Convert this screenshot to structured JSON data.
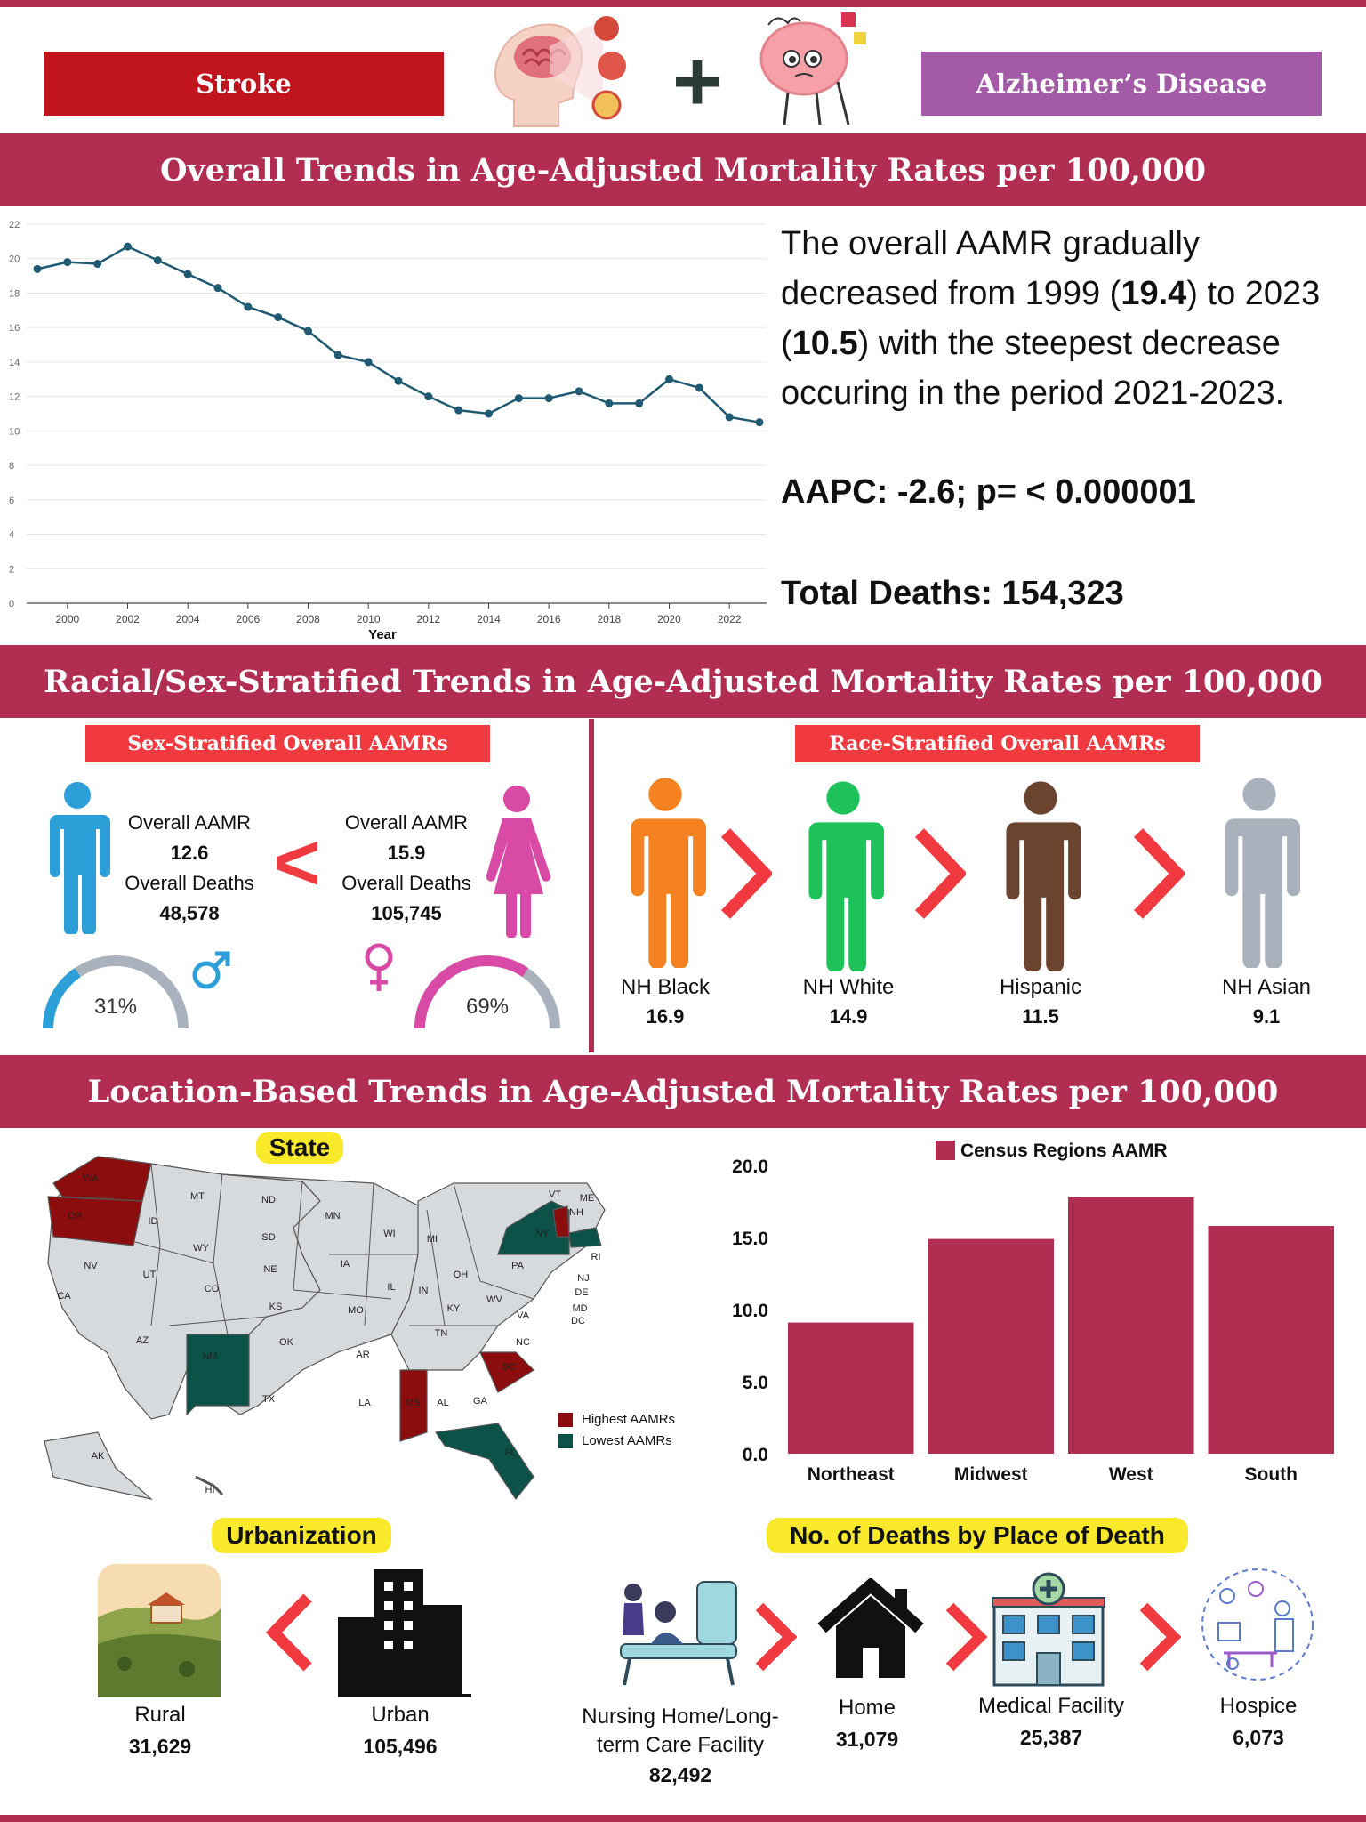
{
  "header": {
    "stroke_label": "Stroke",
    "plus": "+",
    "alz_label": "Alzheimer’s Disease"
  },
  "section1": {
    "title": "Overall Trends in Age-Adjusted Mortality Rates per 100,000",
    "summary_pre": "The overall AAMR gradually decreased from 1999 (",
    "summary_v1": "19.4",
    "summary_mid": ") to 2023 (",
    "summary_v2": "10.5",
    "summary_post": ") with the steepest decrease occuring in the period 2021-2023.",
    "aapc": "AAPC: -2.6; p= < 0.000001",
    "total_deaths": "Total Deaths: 154,323"
  },
  "chart_data": [
    {
      "type": "line",
      "title": "",
      "xlabel": "Year",
      "ylabel": "",
      "ylim": [
        0,
        22
      ],
      "yticks": [
        "0",
        "2",
        "4",
        "6",
        "8",
        "10",
        "12",
        "14",
        "16",
        "18",
        "20",
        "22"
      ],
      "xticks": [
        "2000",
        "2002",
        "2004",
        "2006",
        "2008",
        "2010",
        "2012",
        "2014",
        "2016",
        "2018",
        "2020",
        "2022"
      ],
      "x": [
        1999,
        2000,
        2001,
        2002,
        2003,
        2004,
        2005,
        2006,
        2007,
        2008,
        2009,
        2010,
        2011,
        2012,
        2013,
        2014,
        2015,
        2016,
        2017,
        2018,
        2019,
        2020,
        2021,
        2022,
        2023
      ],
      "values": [
        19.4,
        19.8,
        19.7,
        20.7,
        19.9,
        19.1,
        18.3,
        17.2,
        16.6,
        15.8,
        14.4,
        14.0,
        12.9,
        12.0,
        11.2,
        11.0,
        11.9,
        11.9,
        12.3,
        11.6,
        11.6,
        13.0,
        12.5,
        10.8,
        10.5
      ],
      "color": "#1f5a72"
    },
    {
      "type": "bar",
      "title": "Census Regions AAMR",
      "categories": [
        "Northeast",
        "Midwest",
        "West",
        "South"
      ],
      "values": [
        9.1,
        14.9,
        17.8,
        15.8
      ],
      "ylim": [
        0,
        20
      ],
      "yticks": [
        "0.0",
        "5.0",
        "10.0",
        "15.0",
        "20.0"
      ],
      "color": "#b22d52"
    }
  ],
  "section2": {
    "title": "Racial/Sex-Stratified Trends in Age-Adjusted Mortality Rates per 100,000",
    "sex_tag": "Sex-Stratified Overall AAMRs",
    "race_tag": "Race-Stratified Overall AAMRs",
    "male": {
      "aamr_label": "Overall AAMR",
      "aamr": "12.6",
      "deaths_label": "Overall Deaths",
      "deaths": "48,578",
      "pct": "31%",
      "pct_value": 31,
      "color": "#2c9ed8"
    },
    "female": {
      "aamr_label": "Overall AAMR",
      "aamr": "15.9",
      "deaths_label": "Overall Deaths",
      "deaths": "105,745",
      "pct": "69%",
      "pct_value": 69,
      "color": "#d94aa6"
    },
    "lt": "<",
    "gt": ">",
    "race": [
      {
        "name": "NH Black",
        "value": "16.9",
        "color": "#f58220"
      },
      {
        "name": "NH White",
        "value": "14.9",
        "color": "#1dc35a"
      },
      {
        "name": "Hispanic",
        "value": "11.5",
        "color": "#6b4430"
      },
      {
        "name": "NH Asian",
        "value": "9.1",
        "color": "#a9b1bc"
      }
    ]
  },
  "section3": {
    "title": "Location-Based Trends in Age-Adjusted Mortality Rates per 100,000",
    "state_tag": "State",
    "legend_high": "Highest AAMRs",
    "legend_low": "Lowest AAMRs",
    "high_color": "#8b0d0d",
    "low_color": "#0d5249",
    "map_labels": [
      "WA",
      "OR",
      "ID",
      "MT",
      "WY",
      "NV",
      "UT",
      "CA",
      "AZ",
      "NM",
      "CO",
      "ND",
      "SD",
      "NE",
      "KS",
      "OK",
      "TX",
      "MN",
      "IA",
      "MO",
      "AR",
      "LA",
      "WI",
      "IL",
      "MI",
      "IN",
      "OH",
      "KY",
      "TN",
      "MS",
      "AL",
      "GA",
      "FL",
      "SC",
      "NC",
      "VA",
      "WV",
      "PA",
      "NY",
      "VT",
      "NH",
      "ME",
      "RI",
      "NJ",
      "DE",
      "MD",
      "DC",
      "AK",
      "HI"
    ],
    "urban_tag": "Urbanization",
    "rural_label": "Rural",
    "rural_value": "31,629",
    "urban_label": "Urban",
    "urban_value": "105,496",
    "place_tag": "No. of Deaths by Place of Death",
    "places": [
      {
        "name1": "Nursing Home/Long-",
        "name2": "term Care Facility",
        "value": "82,492"
      },
      {
        "name1": "Home",
        "value": "31,079"
      },
      {
        "name1": "Medical Facility",
        "value": "25,387"
      },
      {
        "name1": "Hospice",
        "value": "6,073"
      }
    ]
  }
}
